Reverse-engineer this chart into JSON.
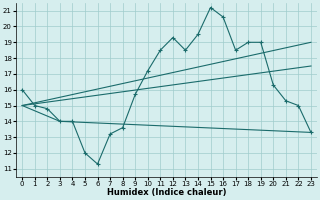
{
  "title": "",
  "xlabel": "Humidex (Indice chaleur)",
  "ylabel": "",
  "xlim": [
    -0.5,
    23.5
  ],
  "ylim": [
    10.5,
    21.5
  ],
  "yticks": [
    11,
    12,
    13,
    14,
    15,
    16,
    17,
    18,
    19,
    20,
    21
  ],
  "xticks": [
    0,
    1,
    2,
    3,
    4,
    5,
    6,
    7,
    8,
    9,
    10,
    11,
    12,
    13,
    14,
    15,
    16,
    17,
    18,
    19,
    20,
    21,
    22,
    23
  ],
  "bg_color": "#d6eeee",
  "grid_color": "#a0cccc",
  "line_color": "#1a6b6b",
  "line1_x": [
    0,
    1,
    2,
    3,
    4,
    5,
    6,
    7,
    8,
    9,
    10,
    11,
    12,
    13,
    14,
    15,
    16,
    17,
    18,
    19,
    20,
    21,
    22,
    23
  ],
  "line1_y": [
    16.0,
    15.0,
    14.8,
    14.0,
    14.0,
    12.0,
    11.3,
    13.2,
    13.6,
    15.7,
    17.2,
    18.5,
    19.3,
    18.5,
    19.5,
    21.2,
    20.6,
    18.5,
    19.0,
    19.0,
    16.3,
    15.3,
    15.0,
    13.3
  ],
  "line2_x": [
    0,
    23
  ],
  "line2_y": [
    15.0,
    19.0
  ],
  "line3_x": [
    0,
    23
  ],
  "line3_y": [
    15.0,
    17.5
  ],
  "line4_x": [
    0,
    3,
    23
  ],
  "line4_y": [
    15.0,
    14.0,
    13.3
  ]
}
